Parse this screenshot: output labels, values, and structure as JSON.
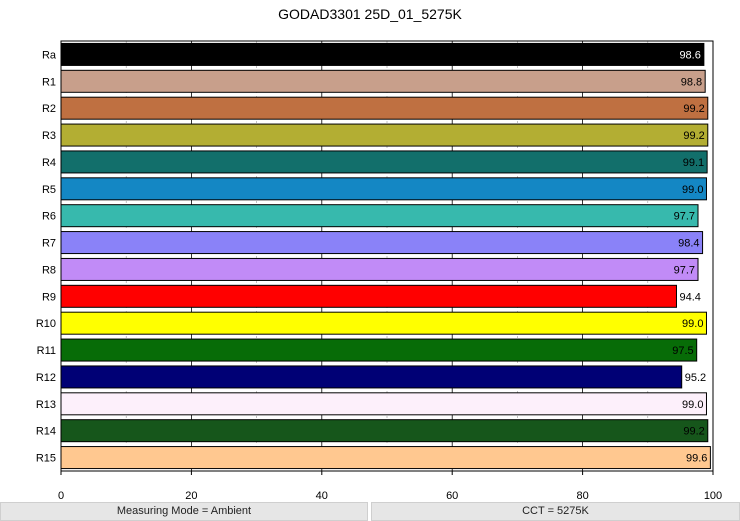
{
  "chart_data": {
    "type": "bar",
    "orientation": "horizontal",
    "title": "GODAD3301 25D_01_5275K",
    "categories": [
      "Ra",
      "R1",
      "R2",
      "R3",
      "R4",
      "R5",
      "R6",
      "R7",
      "R8",
      "R9",
      "R10",
      "R11",
      "R12",
      "R13",
      "R14",
      "R15"
    ],
    "values": [
      98.6,
      98.8,
      99.2,
      99.2,
      99.1,
      99.0,
      97.7,
      98.4,
      97.7,
      94.4,
      99.0,
      97.5,
      95.2,
      99.0,
      99.2,
      99.6
    ],
    "value_labels": [
      "98.6",
      "98.8",
      "99.2",
      "99.2",
      "99.1",
      "99.0",
      "97.7",
      "98.4",
      "97.7",
      "94.4",
      "99.0",
      "97.5",
      "95.2",
      "99.0",
      "99.2",
      "99.6"
    ],
    "colors": [
      "#000000",
      "#c89f8b",
      "#bf7041",
      "#b3ae33",
      "#126f6b",
      "#1487c4",
      "#37b9ad",
      "#8a82f8",
      "#c18bf7",
      "#ff0000",
      "#ffff00",
      "#076c07",
      "#000075",
      "#fdf0fb",
      "#16561b",
      "#ffc890"
    ],
    "label_colors": [
      "#ffffff",
      "#000000",
      "#000000",
      "#000000",
      "#000000",
      "#000000",
      "#000000",
      "#000000",
      "#000000",
      "#000000",
      "#000000",
      "#000000",
      "#ffffff",
      "#000000",
      "#000000",
      "#000000"
    ],
    "xlim": [
      0,
      100
    ],
    "xticks": [
      "0",
      "20",
      "40",
      "60",
      "80",
      "100"
    ],
    "grid": "dashed vertical minor gridlines every 10, solid at major ticks"
  },
  "footer": {
    "left": "Measuring Mode = Ambient",
    "right": "CCT = 5275K"
  }
}
